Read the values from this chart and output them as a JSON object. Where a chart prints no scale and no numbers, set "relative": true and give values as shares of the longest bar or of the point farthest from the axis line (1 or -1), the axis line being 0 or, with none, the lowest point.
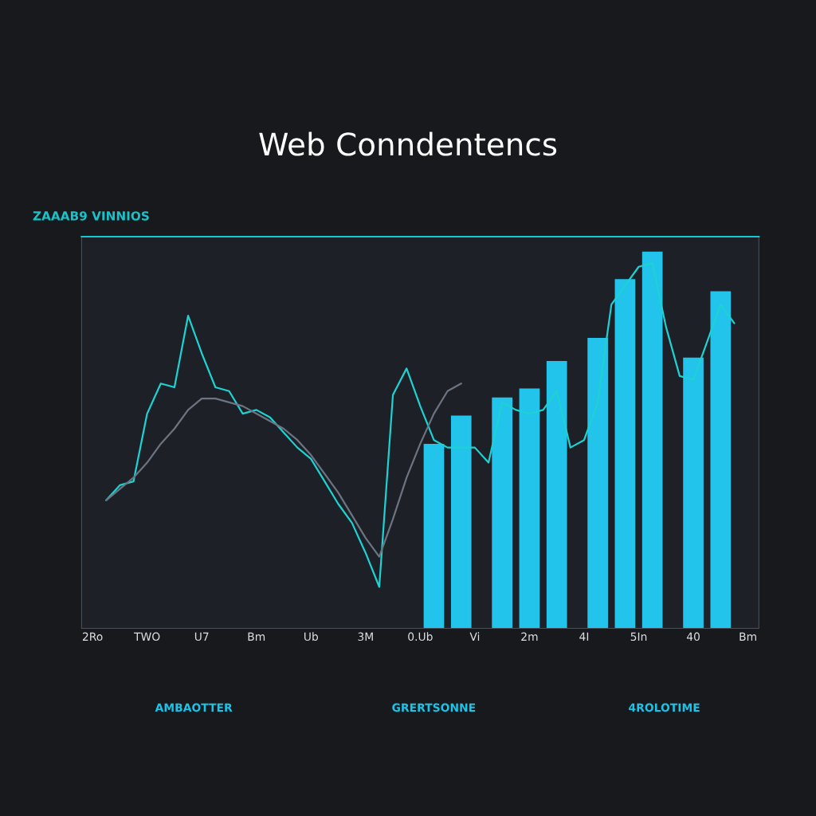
{
  "chart_data": {
    "type": "bar",
    "title": "Web Conndentencs",
    "relative": true,
    "categories": [
      "2Ro",
      null,
      null,
      null,
      "TWO",
      null,
      null,
      null,
      "U7",
      null,
      null,
      null,
      "Bm",
      null,
      null,
      null,
      "Ub",
      null,
      null,
      null,
      "3M",
      null,
      null,
      null,
      "0.Ub",
      null,
      null,
      null,
      "Vi",
      null,
      null,
      null,
      "2m",
      null,
      null,
      null,
      "4I",
      null,
      null,
      null,
      "5In",
      null,
      null,
      null,
      "40",
      null,
      null,
      null,
      "Bm"
    ],
    "annotations": [
      "ZAAAB9 VINNIOS",
      "AMBAOTTER",
      "GRERTSONNE",
      "4ROLOTIME"
    ],
    "series": [
      {
        "color": "#22c4ec",
        "values": [
          null,
          null,
          null,
          null,
          null,
          null,
          null,
          null,
          null,
          null,
          null,
          null,
          null,
          null,
          null,
          null,
          null,
          null,
          null,
          null,
          null,
          null,
          null,
          null,
          null,
          0.49,
          null,
          0.565,
          null,
          null,
          0.613,
          null,
          0.637,
          null,
          0.71,
          null,
          null,
          0.771,
          null,
          0.927,
          null,
          1.0,
          null,
          null,
          0.719,
          null,
          0.895,
          null,
          null
        ]
      },
      {
        "type": "line",
        "color": "#1ed2d2",
        "values": [
          null,
          0.34,
          0.38,
          0.39,
          0.57,
          0.65,
          0.64,
          0.83,
          0.73,
          0.64,
          0.63,
          0.57,
          0.58,
          0.56,
          0.52,
          0.48,
          0.45,
          0.39,
          0.33,
          0.28,
          0.2,
          0.11,
          0.62,
          0.69,
          0.59,
          0.5,
          0.48,
          0.48,
          0.48,
          0.44,
          0.6,
          0.58,
          0.57,
          0.58,
          0.63,
          0.48,
          0.5,
          0.6,
          0.86,
          0.91,
          0.96,
          0.97,
          0.8,
          0.67,
          0.66,
          0.76,
          0.86,
          0.81,
          null
        ]
      },
      {
        "type": "line",
        "color": "#6b7480",
        "values": [
          null,
          0.34,
          0.37,
          0.4,
          0.44,
          0.49,
          0.53,
          0.58,
          0.61,
          0.61,
          0.6,
          0.59,
          0.57,
          0.55,
          0.53,
          0.5,
          0.46,
          0.41,
          0.36,
          0.3,
          0.24,
          0.19,
          0.29,
          0.4,
          0.49,
          0.57,
          0.63,
          0.65,
          null,
          null,
          null,
          null,
          null,
          null,
          null,
          null,
          null,
          null,
          null,
          null,
          null,
          null,
          null,
          null,
          null,
          null,
          null,
          null,
          null
        ]
      }
    ]
  }
}
